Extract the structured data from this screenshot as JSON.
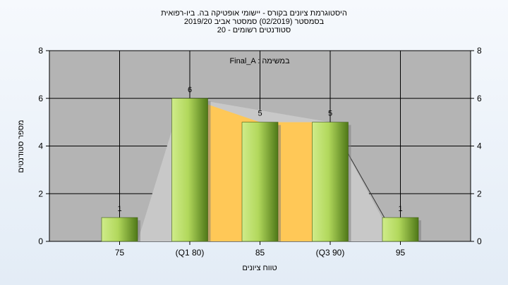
{
  "chart_data": {
    "type": "bar",
    "title_lines": [
      "היסטוגרמת ציונים בקורס - יישומי אופטיקה בה. ביו-רפואית",
      "בסמסטר  (02/2019)  סמסטר אביב 2019/20",
      "סטודנטים רשומים - 20"
    ],
    "series_label": "Final_A : במשימה",
    "xlabel": "טווח ציונים",
    "ylabel": "מספר סטודנטים",
    "categories": [
      "75",
      "(Q1 80)",
      "85",
      "(Q3 90)",
      "95"
    ],
    "values": [
      1,
      6,
      5,
      5,
      1
    ],
    "data_labels": [
      "1",
      "6",
      "5",
      "5",
      "1"
    ],
    "ylim": [
      0,
      8
    ],
    "yticks": [
      "0",
      "2",
      "4",
      "6",
      "8"
    ],
    "grid": true,
    "colors": {
      "plot_bg": "#b4b4b4",
      "bar_light": "#c8e682",
      "bar_dark": "#5f8a1e",
      "area_gray": "#c8c8c8",
      "area_yellow": "#ffc857"
    }
  }
}
